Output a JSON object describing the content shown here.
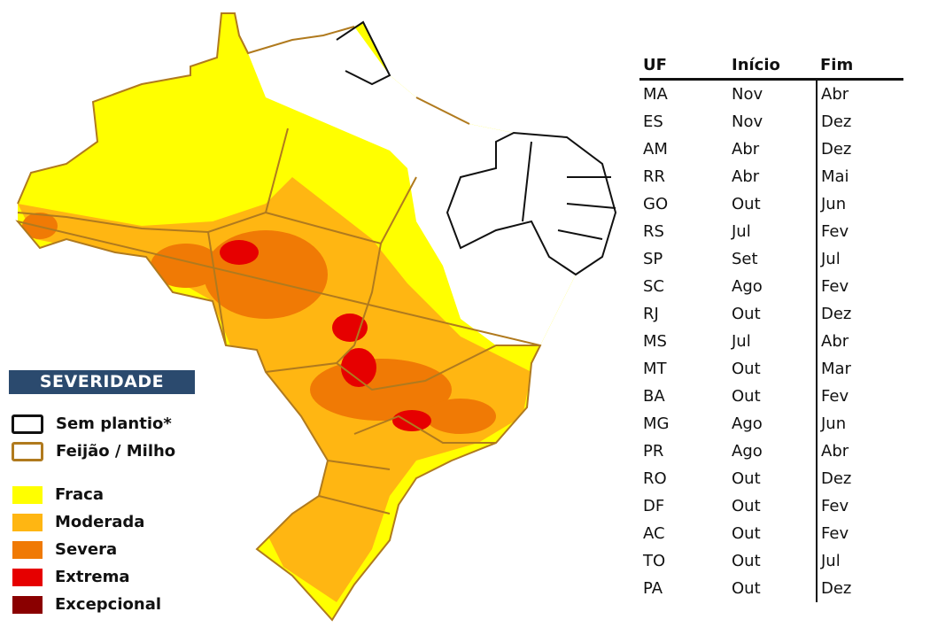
{
  "legend": {
    "title": "SEVERIDADE",
    "outlines": [
      {
        "label": "Sem plantio*",
        "color": "#111111"
      },
      {
        "label": "Feijão / Milho",
        "color": "#b07a1e"
      }
    ],
    "levels": [
      {
        "label": "Fraca",
        "color": "#ffff00"
      },
      {
        "label": "Moderada",
        "color": "#ffb612"
      },
      {
        "label": "Severa",
        "color": "#f07a05"
      },
      {
        "label": "Extrema",
        "color": "#e60000"
      },
      {
        "label": "Excepcional",
        "color": "#8a0000"
      }
    ]
  },
  "table": {
    "headers": [
      "UF",
      "Início",
      "Fim"
    ],
    "rows": [
      [
        "MA",
        "Nov",
        "Abr"
      ],
      [
        "ES",
        "Nov",
        "Dez"
      ],
      [
        "AM",
        "Abr",
        "Dez"
      ],
      [
        "RR",
        "Abr",
        "Mai"
      ],
      [
        "GO",
        "Out",
        "Jun"
      ],
      [
        "RS",
        "Jul",
        "Fev"
      ],
      [
        "SP",
        "Set",
        "Jul"
      ],
      [
        "SC",
        "Ago",
        "Fev"
      ],
      [
        "RJ",
        "Out",
        "Dez"
      ],
      [
        "MS",
        "Jul",
        "Abr"
      ],
      [
        "MT",
        "Out",
        "Mar"
      ],
      [
        "BA",
        "Out",
        "Fev"
      ],
      [
        "MG",
        "Ago",
        "Jun"
      ],
      [
        "PR",
        "Ago",
        "Abr"
      ],
      [
        "RO",
        "Out",
        "Dez"
      ],
      [
        "DF",
        "Out",
        "Fev"
      ],
      [
        "AC",
        "Out",
        "Fev"
      ],
      [
        "TO",
        "Out",
        "Jul"
      ],
      [
        "PA",
        "Out",
        "Dez"
      ]
    ]
  }
}
